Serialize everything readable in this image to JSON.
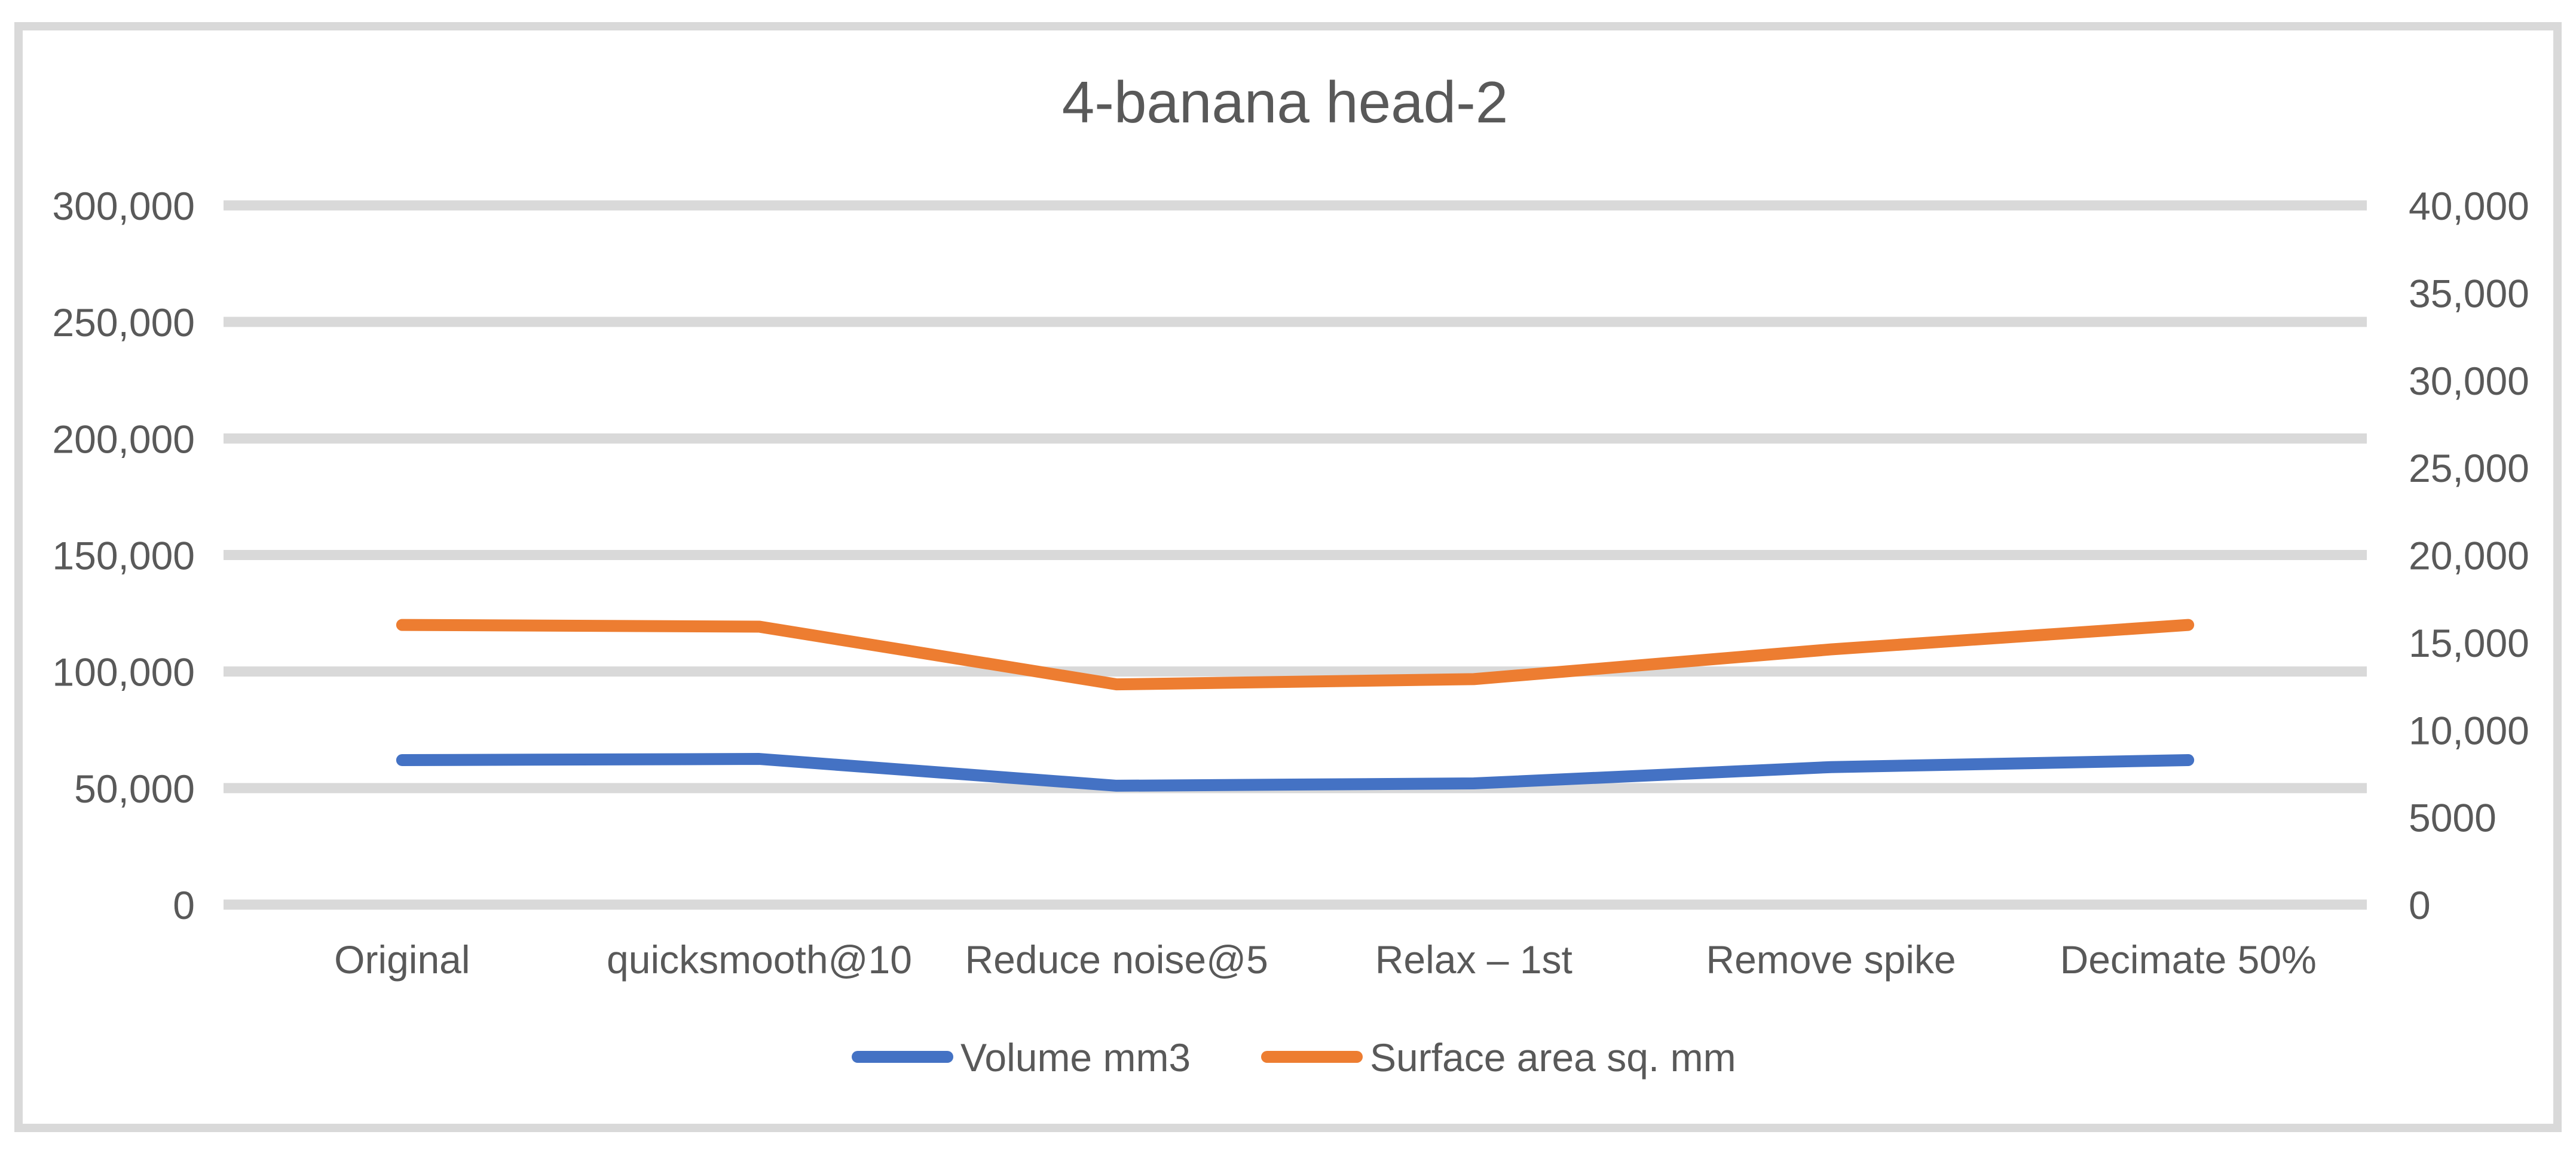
{
  "chart_data": {
    "type": "line",
    "title": "4-banana head-2",
    "categories": [
      "Original",
      "quicksmooth@10",
      "Reduce noise@5",
      "Relax – 1st",
      "Remove spike",
      "Decimate 50%"
    ],
    "series": [
      {
        "name": "Volume mm3",
        "axis": "left",
        "color": "#4472c4",
        "values": [
          62000,
          62500,
          51000,
          52000,
          59000,
          62000
        ]
      },
      {
        "name": "Surface area sq. mm",
        "axis": "right",
        "color": "#ed7d31",
        "values": [
          16000,
          15900,
          12600,
          12900,
          14600,
          16000
        ]
      }
    ],
    "y_left": {
      "min": 0,
      "max": 300000,
      "ticks": [
        0,
        50000,
        100000,
        150000,
        200000,
        250000,
        300000
      ],
      "tick_labels": [
        "0",
        "50,000",
        "100,000",
        "150,000",
        "200,000",
        "250,000",
        "300,000"
      ]
    },
    "y_right": {
      "min": 0,
      "max": 40000,
      "ticks": [
        0,
        5000,
        10000,
        15000,
        20000,
        25000,
        30000,
        35000,
        40000
      ],
      "tick_labels": [
        "0",
        "5000",
        "10,000",
        "15,000",
        "20,000",
        "25,000",
        "30,000",
        "35,000",
        "40,000"
      ]
    },
    "grid": true,
    "legend_position": "bottom"
  }
}
